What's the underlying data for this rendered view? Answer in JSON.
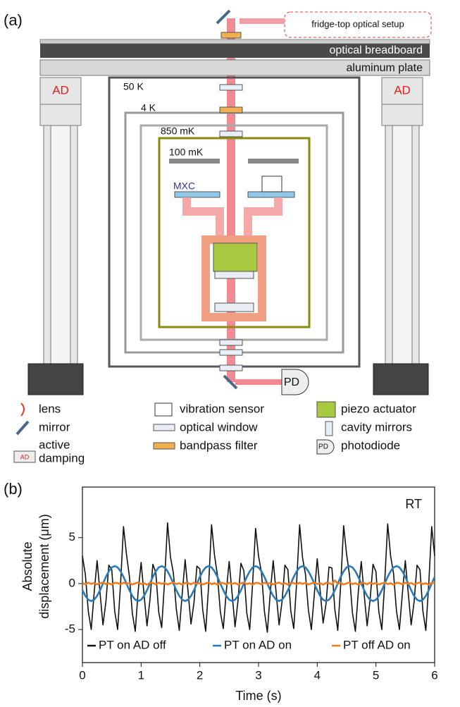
{
  "panel_a": {
    "label": "(a)",
    "setup": "fridge-top optical setup",
    "breadboard": "optical breadboard",
    "plate": "aluminum plate",
    "damper": "AD",
    "stages": [
      "50 K",
      "4 K",
      "850 mK",
      "100 mK",
      "MXC"
    ],
    "detector": "PD",
    "legend": [
      {
        "label": [
          "lens"
        ]
      },
      {
        "label": [
          "mirror"
        ]
      },
      {
        "label": [
          "active",
          "damping"
        ]
      },
      {
        "label": [
          "vibration sensor"
        ]
      },
      {
        "label": [
          "optical window"
        ]
      },
      {
        "label": [
          "bandpass filter"
        ]
      },
      {
        "label": [
          "piezo actuator"
        ]
      },
      {
        "label": [
          "cavity mirrors"
        ]
      },
      {
        "label": [
          "photodiode"
        ]
      }
    ]
  },
  "panel_b": {
    "label": "(b)"
  },
  "chart_data": {
    "type": "line",
    "xlabel": "Time (s)",
    "ylabel": [
      "Absolute",
      "displacement (μm)"
    ],
    "annotation": "RT",
    "legend": "lower center",
    "xlim": [
      0,
      6
    ],
    "ylim": [
      -8.6,
      10.5
    ],
    "xticks": [
      0,
      1,
      2,
      3,
      4,
      5,
      6
    ],
    "yticks": [
      -5,
      0,
      5
    ],
    "x": [
      0,
      0.05,
      0.1,
      0.15,
      0.2,
      0.25,
      0.3,
      0.35,
      0.4,
      0.45,
      0.5,
      0.55,
      0.6,
      0.65,
      0.7,
      0.75,
      0.8,
      0.85,
      0.9,
      0.95,
      1,
      1.05,
      1.1,
      1.15,
      1.2,
      1.25,
      1.3,
      1.35,
      1.4,
      1.45,
      1.5,
      1.55,
      1.6,
      1.65,
      1.7,
      1.75,
      1.8,
      1.85,
      1.9,
      1.95,
      2,
      2.05,
      2.1,
      2.15,
      2.2,
      2.25,
      2.3,
      2.35,
      2.4,
      2.45,
      2.5,
      2.55,
      2.6,
      2.65,
      2.7,
      2.75,
      2.8,
      2.85,
      2.9,
      2.95,
      3,
      3.05,
      3.1,
      3.15,
      3.2,
      3.25,
      3.3,
      3.35,
      3.4,
      3.45,
      3.5,
      3.55,
      3.6,
      3.65,
      3.7,
      3.75,
      3.8,
      3.85,
      3.9,
      3.95,
      4,
      4.05,
      4.1,
      4.15,
      4.2,
      4.25,
      4.3,
      4.35,
      4.4,
      4.45,
      4.5,
      4.55,
      4.6,
      4.65,
      4.7,
      4.75,
      4.8,
      4.85,
      4.9,
      4.95,
      5,
      5.05,
      5.1,
      5.15,
      5.2,
      5.25,
      5.3,
      5.35,
      5.4,
      5.45,
      5.5,
      5.55,
      5.6,
      5.65,
      5.7,
      5.75,
      5.8,
      5.85,
      5.9,
      5.95,
      6
    ],
    "series": [
      {
        "name": "PT on AD off",
        "color": "#111111",
        "values": [
          3,
          1,
          -3,
          -5,
          -1,
          2.5,
          -1,
          -4.5,
          -2,
          2,
          1.5,
          -3,
          -5,
          0,
          6.2,
          3.2,
          0.8,
          -3.2,
          -5.2,
          -0.8,
          2.3,
          -1.2,
          -4.6,
          -1.8,
          2.1,
          1.2,
          -3.1,
          -4.8,
          0.3,
          6.6,
          2.9,
          1.1,
          -2.8,
          -5.1,
          -1.1,
          2.6,
          -0.9,
          -4.4,
          -2.1,
          1.9,
          1.6,
          -2.9,
          -5.2,
          -0.2,
          6.4,
          3.1,
          0.9,
          -3.1,
          -4.9,
          -0.9,
          2.4,
          -1.1,
          -4.7,
          -1.9,
          2.2,
          1.4,
          -3.2,
          -5,
          0.1,
          6,
          3,
          1.2,
          -3,
          -5.3,
          -1,
          2.5,
          -1,
          -4.5,
          -2,
          2,
          1.5,
          -3,
          -4.9,
          0.2,
          6.4,
          2.8,
          1,
          -2.9,
          -5,
          -1.2,
          2.7,
          -0.8,
          -4.3,
          -2.2,
          1.8,
          1.7,
          -2.8,
          -5.1,
          -0.1,
          6.3,
          3.2,
          0.9,
          -3.2,
          -5.2,
          -0.9,
          2.4,
          -1.2,
          -4.6,
          -1.8,
          2.1,
          1.3,
          -3.1,
          -5,
          0.2,
          6.5,
          3,
          1.1,
          -3,
          -5,
          -1.1,
          2.5,
          -1,
          -4.5,
          -2,
          2,
          1.5,
          -3,
          -5.1,
          0,
          6.2,
          3
        ]
      },
      {
        "name": "PT on AD on",
        "color": "#2a7ab8",
        "values": [
          -0.73,
          -1.34,
          -1.76,
          -1.9,
          -1.76,
          -1.34,
          -0.73,
          0,
          0.73,
          1.34,
          1.76,
          1.9,
          1.76,
          1.34,
          0.73,
          0,
          -0.73,
          -1.34,
          -1.76,
          -1.9,
          -1.76,
          -1.34,
          -0.73,
          0,
          0.73,
          1.34,
          1.76,
          1.9,
          1.76,
          1.34,
          0.73,
          0,
          -0.73,
          -1.34,
          -1.76,
          -1.9,
          -1.76,
          -1.34,
          -0.73,
          0,
          0.73,
          1.34,
          1.76,
          1.9,
          1.76,
          1.34,
          0.73,
          0,
          -0.73,
          -1.34,
          -1.76,
          -1.9,
          -1.76,
          -1.34,
          -0.73,
          0,
          0.73,
          1.34,
          1.76,
          1.9,
          1.76,
          1.34,
          0.73,
          0,
          -0.73,
          -1.34,
          -1.76,
          -1.9,
          -1.76,
          -1.34,
          -0.73,
          0,
          0.73,
          1.34,
          1.76,
          1.9,
          1.76,
          1.34,
          0.73,
          0,
          -0.73,
          -1.34,
          -1.76,
          -1.9,
          -1.76,
          -1.34,
          -0.73,
          0,
          0.73,
          1.34,
          1.76,
          1.9,
          1.76,
          1.34,
          0.73,
          0,
          -0.73,
          -1.34,
          -1.76,
          -1.9,
          -1.76,
          -1.34,
          -0.73,
          0,
          0.73,
          1.34,
          1.76,
          1.9,
          1.76,
          1.34,
          0.73,
          0,
          -0.73,
          -1.34,
          -1.76,
          -1.9,
          -1.76,
          -1.34,
          -0.73,
          0,
          0.73
        ]
      },
      {
        "name": "PT off AD on",
        "color": "#f07c1e",
        "values": [
          0.05,
          -0.08,
          0.1,
          -0.03,
          0.07,
          -0.1,
          0.02,
          0.12,
          -0.06,
          0.04,
          -0.12,
          0.08,
          0.05,
          -0.08,
          0.1,
          -0.03,
          0.07,
          -0.1,
          0.02,
          0.12,
          -0.06,
          0.04,
          -0.12,
          0.08,
          0.05,
          -0.08,
          0.1,
          -0.03,
          0.07,
          -0.1,
          0.02,
          0.12,
          -0.06,
          0.04,
          -0.12,
          0.08,
          0.05,
          -0.08,
          0.1,
          -0.03,
          0.07,
          -0.1,
          0.02,
          0.12,
          -0.06,
          0.04,
          -0.12,
          0.08,
          0.05,
          -0.08,
          0.1,
          -0.03,
          0.07,
          -0.1,
          0.02,
          0.12,
          -0.06,
          0.04,
          -0.12,
          0.08,
          0.05,
          -0.08,
          0.1,
          -0.03,
          0.07,
          -0.1,
          0.02,
          0.12,
          -0.06,
          0.04,
          -0.12,
          0.08,
          0.05,
          -0.08,
          0.1,
          -0.03,
          0.07,
          -0.1,
          0.02,
          0.12,
          -0.06,
          0.04,
          -0.12,
          0.08,
          0.05,
          -0.08,
          0.35,
          -0.03,
          0.07,
          -0.1,
          0.02,
          0.12,
          -0.06,
          0.04,
          -0.12,
          0.08,
          0.05,
          -0.08,
          0.1,
          -0.03,
          0.07,
          -0.1,
          0.02,
          0.12,
          -0.06,
          0.04,
          -0.12,
          0.08,
          0.05,
          -0.08,
          0.1,
          -0.03,
          0.07,
          -0.1,
          0.02,
          0.12,
          -0.06,
          0.04,
          -0.12,
          0.08,
          0.05
        ]
      }
    ]
  }
}
